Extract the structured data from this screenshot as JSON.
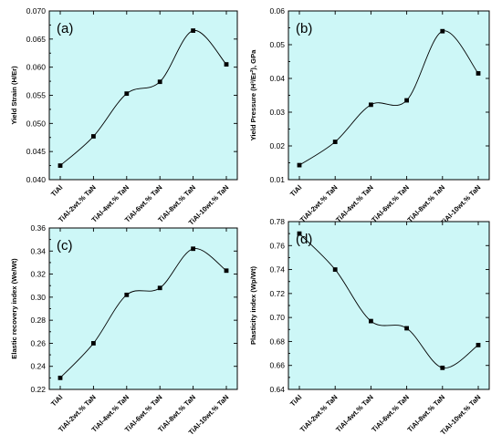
{
  "chart_data": [
    {
      "type": "line",
      "tag": "(a)",
      "ylabel": "Yield Strain (H/Er)",
      "categories": [
        "TiAl",
        "TiAl-2wt.% TaN",
        "TiAl-4wt.% TaN",
        "TiAl-6wt.% TaN",
        "TiAl-8wt.% TaN",
        "TiAl-10wt.% TaN"
      ],
      "values": [
        0.0425,
        0.0477,
        0.0553,
        0.0574,
        0.0665,
        0.0605
      ],
      "ylim": [
        0.04,
        0.07
      ],
      "yticks": [
        "0.040",
        "0.045",
        "0.050",
        "0.055",
        "0.060",
        "0.065",
        "0.070"
      ],
      "grid": false,
      "legend": "none"
    },
    {
      "type": "line",
      "tag": "(b)",
      "ylabel": "Yield Pressure (H³/Er²), GPa",
      "categories": [
        "TiAl",
        "TiAl-2wt.% TaN",
        "TiAl-4wt.% TaN",
        "TiAl-6wt.% TaN",
        "TiAl-8wt.% TaN",
        "TiAl-10wt.% TaN"
      ],
      "values": [
        0.0143,
        0.0212,
        0.0322,
        0.0335,
        0.054,
        0.0415
      ],
      "ylim": [
        0.01,
        0.06
      ],
      "yticks": [
        "0.01",
        "0.02",
        "0.03",
        "0.04",
        "0.05",
        "0.06"
      ],
      "grid": false,
      "legend": "none"
    },
    {
      "type": "line",
      "tag": "(c)",
      "ylabel": "Elastic recovery index (We/Wt)",
      "categories": [
        "TiAl",
        "TiAl-2wt.% TaN",
        "TiAl-4wt.% TaN",
        "TiAl-6wt.% TaN",
        "TiAl-8wt.% TaN",
        "TiAl-10wt.% TaN"
      ],
      "values": [
        0.23,
        0.26,
        0.302,
        0.308,
        0.342,
        0.323
      ],
      "ylim": [
        0.22,
        0.36
      ],
      "yticks": [
        "0.22",
        "0.24",
        "0.26",
        "0.28",
        "0.30",
        "0.32",
        "0.34",
        "0.36"
      ],
      "grid": false,
      "legend": "none"
    },
    {
      "type": "line",
      "tag": "(d)",
      "ylabel": "Plasticity index (Wp/Wt)",
      "categories": [
        "TiAl",
        "TiAl-2wt.% TaN",
        "TiAl-4wt.% TaN",
        "TiAl-6wt.% TaN",
        "TiAl-8wt.% TaN",
        "TiAl-10wt.% TaN"
      ],
      "values": [
        0.77,
        0.74,
        0.697,
        0.691,
        0.658,
        0.677
      ],
      "ylim": [
        0.64,
        0.78
      ],
      "yticks": [
        "0.64",
        "0.66",
        "0.68",
        "0.70",
        "0.72",
        "0.74",
        "0.76",
        "0.78"
      ],
      "grid": false,
      "legend": "none"
    }
  ],
  "colors": {
    "plot_background": "#cdf7f7",
    "line": "#000000",
    "marker": "#000000"
  }
}
